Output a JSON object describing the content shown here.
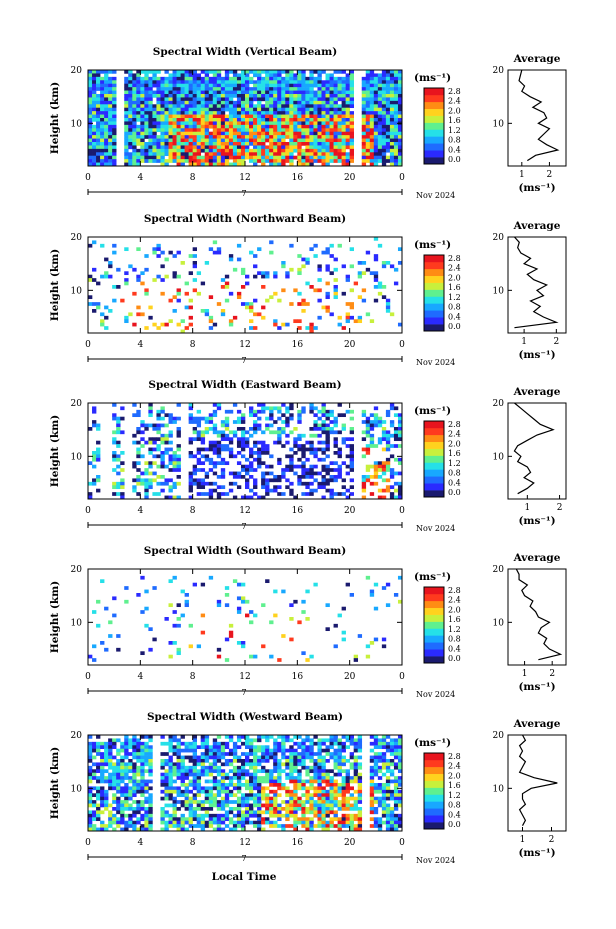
{
  "figure": {
    "xlabel": "Local Time",
    "date_label": "Nov 2024",
    "day_marker": "7",
    "avg_title": "Average",
    "unit": "(ms⁻¹)",
    "ylabel": "Height (km)"
  },
  "colorbar": {
    "ticks": [
      "0.0",
      "0.4",
      "0.8",
      "1.2",
      "1.6",
      "2.0",
      "2.4",
      "2.8"
    ],
    "colors": [
      "#1a1a6e",
      "#2a2aff",
      "#1f6bff",
      "#18a8ff",
      "#25e0e8",
      "#5ff08f",
      "#c8f03c",
      "#ffd21e",
      "#ff8c14",
      "#ff3a1e",
      "#e8141e"
    ]
  },
  "chart_data": [
    {
      "type": "heatmap",
      "title": "Spectral Width (Vertical Beam)",
      "x_ticks": [
        "0",
        "4",
        "8",
        "12",
        "16",
        "20",
        "0"
      ],
      "xlim": [
        0,
        24
      ],
      "y_ticks": [
        "20",
        "10"
      ],
      "ylim": [
        2,
        20
      ],
      "avg": {
        "type": "line",
        "x_ticks": [
          "1",
          "2"
        ],
        "xlim": [
          0.5,
          2.6
        ],
        "heights": [
          3,
          4,
          5,
          6,
          7,
          8,
          9,
          10,
          11,
          12,
          13,
          14,
          15,
          16,
          17,
          18,
          19,
          20
        ],
        "values": [
          1.2,
          1.5,
          2.3,
          1.9,
          1.6,
          1.8,
          2.0,
          1.6,
          1.9,
          1.8,
          1.4,
          1.7,
          1.3,
          1.0,
          1.1,
          0.9,
          0.95,
          1.0
        ]
      }
    },
    {
      "type": "heatmap",
      "title": "Spectral Width (Northward Beam)",
      "x_ticks": [
        "0",
        "4",
        "8",
        "12",
        "16",
        "20",
        "0"
      ],
      "xlim": [
        0,
        24
      ],
      "y_ticks": [
        "20",
        "10"
      ],
      "ylim": [
        2,
        20
      ],
      "avg": {
        "type": "line",
        "x_ticks": [
          "1",
          "2"
        ],
        "xlim": [
          0.5,
          2.3
        ],
        "heights": [
          3,
          4,
          5,
          6,
          7,
          8,
          9,
          10,
          11,
          12,
          13,
          14,
          15,
          16,
          17,
          18,
          19,
          20
        ],
        "values": [
          0.7,
          2.0,
          1.6,
          1.3,
          1.5,
          1.2,
          1.6,
          1.4,
          1.7,
          1.3,
          1.1,
          1.4,
          1.0,
          1.2,
          0.9,
          0.8,
          0.85,
          0.7
        ]
      }
    },
    {
      "type": "heatmap",
      "title": "Spectral Width (Eastward Beam)",
      "x_ticks": [
        "0",
        "4",
        "8",
        "12",
        "16",
        "20",
        "0"
      ],
      "xlim": [
        0,
        24
      ],
      "y_ticks": [
        "20",
        "10"
      ],
      "ylim": [
        2,
        20
      ],
      "avg": {
        "type": "line",
        "x_ticks": [
          "1",
          "2"
        ],
        "xlim": [
          0.4,
          2.2
        ],
        "heights": [
          3,
          4,
          5,
          6,
          7,
          8,
          9,
          10,
          11,
          12,
          13,
          14,
          15,
          16,
          17,
          18,
          19,
          20
        ],
        "values": [
          0.7,
          1.0,
          1.2,
          0.9,
          1.1,
          1.0,
          0.7,
          0.8,
          0.6,
          0.7,
          1.0,
          1.3,
          1.8,
          1.4,
          1.2,
          1.0,
          0.8,
          0.6
        ]
      }
    },
    {
      "type": "heatmap",
      "title": "Spectral Width (Southward Beam)",
      "x_ticks": [
        "0",
        "4",
        "8",
        "12",
        "16",
        "20",
        "0"
      ],
      "xlim": [
        0,
        24
      ],
      "y_ticks": [
        "20",
        "10"
      ],
      "ylim": [
        2,
        20
      ],
      "avg": {
        "type": "line",
        "x_ticks": [
          "1",
          "2"
        ],
        "xlim": [
          0.4,
          2.5
        ],
        "heights": [
          3,
          4,
          5,
          6,
          7,
          8,
          9,
          10,
          11,
          12,
          13,
          14,
          15,
          16,
          17,
          18,
          19,
          20
        ],
        "values": [
          1.5,
          2.3,
          1.9,
          1.7,
          1.8,
          1.5,
          1.6,
          1.9,
          1.5,
          1.4,
          1.2,
          1.3,
          1.0,
          0.9,
          1.1,
          0.8,
          0.8,
          0.7
        ]
      }
    },
    {
      "type": "heatmap",
      "title": "Spectral Width (Westward Beam)",
      "x_ticks": [
        "0",
        "4",
        "8",
        "12",
        "16",
        "20",
        "0"
      ],
      "xlim": [
        0,
        24
      ],
      "y_ticks": [
        "20",
        "10"
      ],
      "ylim": [
        2,
        20
      ],
      "avg": {
        "type": "line",
        "x_ticks": [
          "1",
          "2"
        ],
        "xlim": [
          0.5,
          2.5
        ],
        "heights": [
          3,
          4,
          5,
          6,
          7,
          8,
          9,
          10,
          11,
          12,
          13,
          14,
          15,
          16,
          17,
          18,
          19,
          20
        ],
        "values": [
          1.0,
          1.1,
          1.0,
          0.9,
          1.1,
          1.0,
          1.0,
          1.3,
          2.2,
          1.4,
          0.9,
          1.0,
          1.1,
          0.9,
          1.0,
          0.9,
          1.1,
          1.0
        ]
      }
    }
  ]
}
